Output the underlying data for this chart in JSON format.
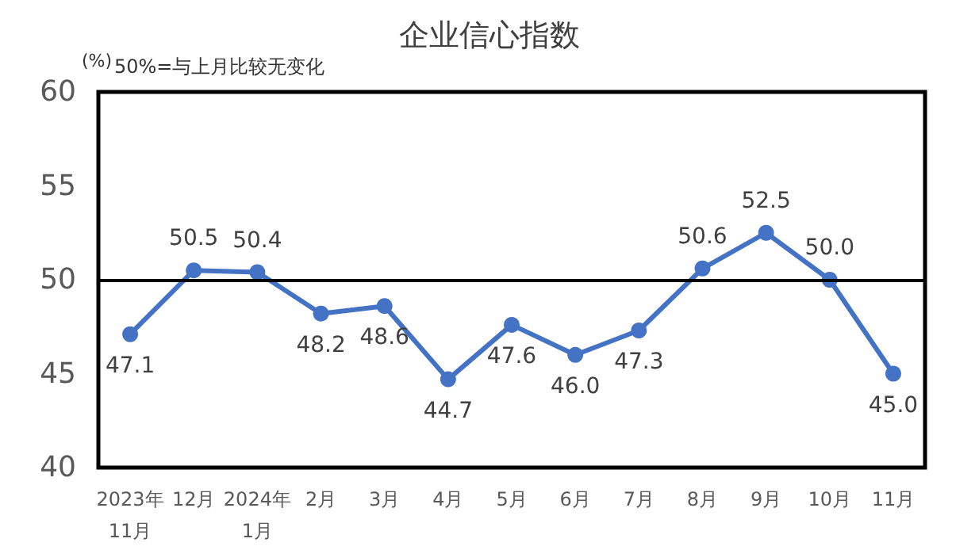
{
  "chart_data": {
    "type": "line",
    "title": "企业信心指数",
    "ylabel": "(%)",
    "annotations": [
      "50%=与上月比较无变化"
    ],
    "categories": [
      "2023年\n11月",
      "12月",
      "2024年\n1月",
      "2月",
      "3月",
      "4月",
      "5月",
      "6月",
      "7月",
      "8月",
      "9月",
      "10月",
      "11月"
    ],
    "series": [
      {
        "color": "#4472c4",
        "values": [
          47.1,
          50.5,
          50.4,
          48.2,
          48.6,
          44.7,
          47.6,
          46.0,
          47.3,
          50.6,
          52.5,
          50.0,
          45.0
        ],
        "value_labels": [
          "47.1",
          "50.5",
          "50.4",
          "48.2",
          "48.6",
          "44.7",
          "47.6",
          "46.0",
          "47.3",
          "50.6",
          "52.5",
          "50.0",
          "45.0"
        ]
      }
    ],
    "ylim": [
      40,
      60
    ],
    "yticks": [
      40,
      45,
      50,
      55,
      60
    ],
    "ref_lines": [
      {
        "axis": "y",
        "value": 50,
        "color": "#000000",
        "line_style": "solid"
      }
    ],
    "marker": "circle",
    "line_style": "solid",
    "grid": false
  }
}
